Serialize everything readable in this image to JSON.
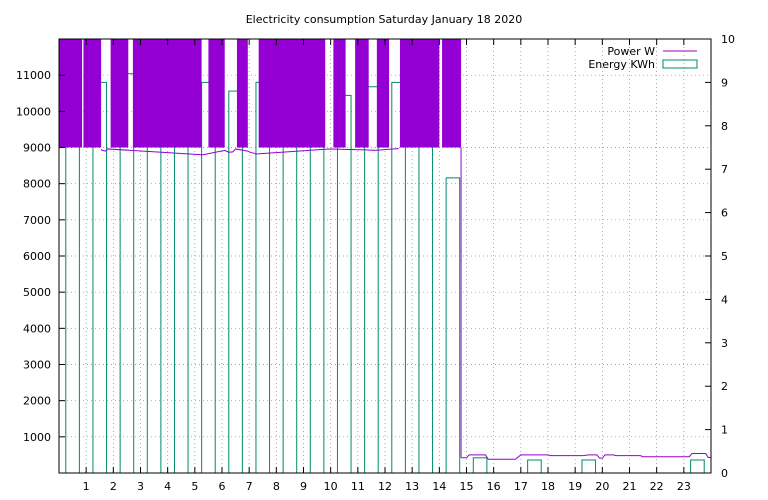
{
  "chart_data": {
    "type": "line+bar",
    "title": "Electricity consumption Saturday January 18 2020",
    "xlabel": "",
    "ylabel": "",
    "x_ticks": [
      "1",
      "2",
      "3",
      "4",
      "5",
      "6",
      "7",
      "8",
      "9",
      "10",
      "11",
      "12",
      "13",
      "14",
      "15",
      "16",
      "17",
      "18",
      "19",
      "20",
      "21",
      "22",
      "23"
    ],
    "xlim": [
      0,
      24
    ],
    "y_left": {
      "lim": [
        0,
        12000
      ],
      "ticks": [
        1000,
        2000,
        3000,
        4000,
        5000,
        6000,
        7000,
        8000,
        9000,
        10000,
        11000
      ]
    },
    "y_right": {
      "lim": [
        0,
        10
      ],
      "ticks": [
        0,
        1,
        2,
        3,
        4,
        5,
        6,
        7,
        8,
        9,
        10
      ]
    },
    "grid": true,
    "legend_position": "top-right",
    "series": [
      {
        "name": "Power W",
        "axis": "left",
        "color": "#9400d3",
        "style": "line-fill",
        "fill_bands": [
          [
            0.0,
            0.85
          ],
          [
            0.9,
            1.55
          ],
          [
            1.9,
            2.55
          ],
          [
            2.72,
            5.25
          ],
          [
            5.5,
            6.1
          ],
          [
            6.55,
            6.95
          ],
          [
            7.35,
            9.8
          ],
          [
            10.1,
            10.55
          ],
          [
            10.9,
            11.4
          ],
          [
            11.7,
            12.15
          ],
          [
            12.55,
            14.0
          ],
          [
            14.1,
            14.8
          ]
        ],
        "low_points": [
          [
            1.55,
            8950
          ],
          [
            1.6,
            8920
          ],
          [
            1.72,
            8900
          ],
          [
            1.8,
            8960
          ],
          [
            5.25,
            8800
          ],
          [
            5.3,
            8800
          ],
          [
            6.1,
            8920
          ],
          [
            6.25,
            8870
          ],
          [
            6.4,
            8880
          ],
          [
            6.5,
            8960
          ],
          [
            6.95,
            8900
          ],
          [
            7.05,
            8860
          ],
          [
            7.15,
            8850
          ],
          [
            7.25,
            8820
          ],
          [
            9.8,
            8950
          ],
          [
            10.0,
            8960
          ],
          [
            11.4,
            8930
          ],
          [
            11.6,
            8920
          ],
          [
            12.15,
            8950
          ],
          [
            12.5,
            8970
          ]
        ],
        "tail": [
          [
            14.8,
            420
          ],
          [
            15.0,
            420
          ],
          [
            15.1,
            500
          ],
          [
            15.7,
            500
          ],
          [
            15.8,
            380
          ],
          [
            16.8,
            380
          ],
          [
            17.0,
            500
          ],
          [
            18.0,
            500
          ],
          [
            18.1,
            480
          ],
          [
            19.3,
            480
          ],
          [
            19.5,
            500
          ],
          [
            19.8,
            500
          ],
          [
            19.9,
            410
          ],
          [
            20.0,
            410
          ],
          [
            20.1,
            500
          ],
          [
            20.4,
            500
          ],
          [
            20.5,
            480
          ],
          [
            21.4,
            480
          ],
          [
            21.5,
            450
          ],
          [
            23.2,
            450
          ],
          [
            23.3,
            540
          ],
          [
            23.8,
            540
          ],
          [
            23.9,
            430
          ],
          [
            24.0,
            430
          ]
        ]
      },
      {
        "name": "Energy KWh",
        "axis": "right",
        "color": "#008b68",
        "style": "bar",
        "values": [
          9.2,
          9.0,
          9.2,
          9.1,
          9.1,
          9.0,
          8.8,
          9.0,
          9.0,
          9.0,
          8.7,
          8.9,
          9.0,
          9.1,
          6.8,
          0.35,
          0.0,
          0.3,
          0.0,
          0.3,
          0.0,
          0.0,
          0.0,
          0.3
        ]
      }
    ]
  }
}
